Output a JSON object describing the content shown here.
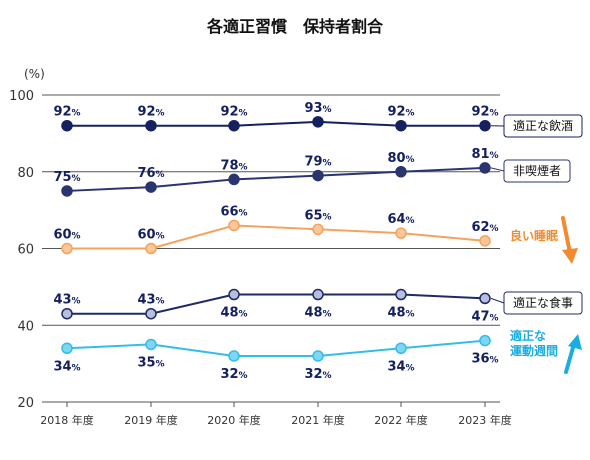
{
  "chart_data": {
    "type": "line",
    "title": "各適正習慣　保持者割合",
    "ylabel": "(%)",
    "xlabel": "",
    "ylim": [
      20,
      100
    ],
    "yticks": [
      20,
      40,
      60,
      80,
      100
    ],
    "grid": false,
    "legend": "right, labels at line ends",
    "categories": [
      "2018 年度",
      "2019 年度",
      "2020 年度",
      "2021 年度",
      "2022 年度",
      "2023 年度"
    ],
    "value_suffix": "%",
    "series": [
      {
        "name": "適正な飲酒",
        "values": [
          92,
          92,
          92,
          93,
          92,
          92
        ],
        "line_color": "#142060",
        "marker_fill": "#142060",
        "marker_stroke": "#142060",
        "label_color": "#142060",
        "label_side": "above",
        "legend_style": "box",
        "arrow": "none"
      },
      {
        "name": "非喫煙者",
        "values": [
          75,
          76,
          78,
          79,
          80,
          81
        ],
        "line_color": "#2a3570",
        "marker_fill": "#2a3570",
        "marker_stroke": "#2a3570",
        "label_color": "#142060",
        "label_side": "above",
        "legend_style": "box",
        "arrow": "none"
      },
      {
        "name": "良い睡眠",
        "values": [
          60,
          60,
          66,
          65,
          64,
          62
        ],
        "line_color": "#f5a25d",
        "marker_fill": "#fbc79a",
        "marker_stroke": "#f5a25d",
        "label_color": "#142060",
        "label_side": "above",
        "legend_style": "text",
        "legend_color": "#f28a30",
        "arrow": "down",
        "arrow_color": "#f28a30"
      },
      {
        "name": "適正な食事",
        "values": [
          43,
          43,
          48,
          48,
          48,
          47
        ],
        "line_color": "#1e2a66",
        "marker_fill": "#b8bfdc",
        "marker_stroke": "#1e2a66",
        "label_color": "#142060",
        "label_side": "mixed",
        "legend_style": "box",
        "arrow": "none"
      },
      {
        "name": "適正な運動週間",
        "values": [
          34,
          35,
          32,
          32,
          34,
          36
        ],
        "line_color": "#33bde8",
        "marker_fill": "#7fd6f2",
        "marker_stroke": "#33bde8",
        "label_color": "#142060",
        "label_side": "below",
        "legend_style": "text",
        "legend_color": "#1aaee0",
        "arrow": "up",
        "arrow_color": "#1aaee0"
      }
    ]
  }
}
